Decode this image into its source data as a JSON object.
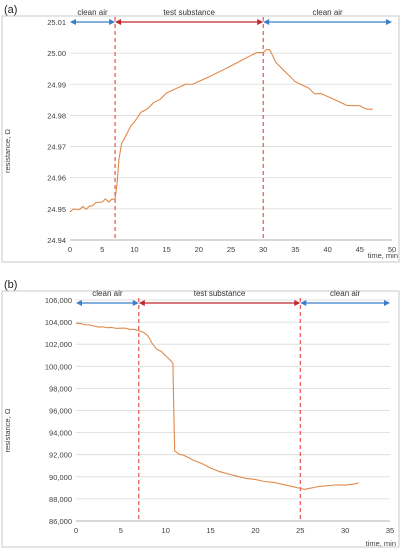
{
  "chart_data": [
    {
      "type": "line",
      "panel_label": "(a)",
      "xlabel": "time, min",
      "ylabel": "resistance, Ω",
      "xlim": [
        0,
        50
      ],
      "ylim": [
        24.94,
        25.01
      ],
      "x_ticks": [
        0,
        5,
        10,
        15,
        20,
        25,
        30,
        35,
        40,
        45,
        50
      ],
      "y_ticks": [
        24.94,
        24.95,
        24.96,
        24.97,
        24.98,
        24.99,
        25.0,
        25.01
      ],
      "y_tick_labels": [
        "24.94",
        "24.95",
        "24.96",
        "24.97",
        "24.98",
        "24.99",
        "25.00",
        "25.01"
      ],
      "grid": "horizontal",
      "phase_boundaries": [
        7,
        30
      ],
      "phases": [
        {
          "label": "clean air",
          "from": 0,
          "to": 7,
          "color": "#3A7DC9"
        },
        {
          "label": "test substance",
          "from": 7,
          "to": 30,
          "color": "#C0282D"
        },
        {
          "label": "clean air",
          "from": 30,
          "to": 50,
          "color": "#3A7DC9"
        }
      ],
      "series_color": "#E0894A",
      "boundary_color": "#E8433A",
      "series": [
        {
          "x": [
            0,
            0.5,
            1,
            1.5,
            2,
            2.5,
            3,
            3.5,
            4,
            4.5,
            5,
            5.5,
            6,
            6.5,
            7,
            7.3,
            7.6,
            8,
            8.5,
            9,
            9.5,
            10,
            11,
            12,
            13,
            14,
            15,
            16,
            17,
            18,
            19,
            20,
            21,
            22,
            23,
            24,
            25,
            26,
            27,
            28,
            29,
            30,
            30.5,
            31,
            31.5,
            32,
            33,
            34,
            35,
            36,
            37,
            38,
            39,
            40,
            41,
            42,
            43,
            44,
            45,
            46,
            47
          ],
          "y": [
            24.949,
            24.95,
            24.95,
            24.95,
            24.951,
            24.95,
            24.951,
            24.951,
            24.952,
            24.952,
            24.952,
            24.953,
            24.952,
            24.953,
            24.953,
            24.958,
            24.966,
            24.971,
            24.973,
            24.975,
            24.977,
            24.978,
            24.981,
            24.982,
            24.984,
            24.985,
            24.987,
            24.988,
            24.989,
            24.99,
            24.99,
            24.991,
            24.992,
            24.993,
            24.994,
            24.995,
            24.996,
            24.997,
            24.998,
            24.999,
            25.0,
            25.0,
            25.001,
            25.001,
            24.999,
            24.997,
            24.995,
            24.993,
            24.991,
            24.99,
            24.989,
            24.987,
            24.987,
            24.986,
            24.985,
            24.984,
            24.983,
            24.983,
            24.983,
            24.982,
            24.982
          ]
        }
      ]
    },
    {
      "type": "line",
      "panel_label": "(b)",
      "xlabel": "time, min",
      "ylabel": "resistance, Ω",
      "xlim": [
        0,
        35
      ],
      "ylim": [
        86000,
        106000
      ],
      "x_ticks": [
        0,
        5,
        10,
        15,
        20,
        25,
        30,
        35
      ],
      "y_ticks": [
        86000,
        88000,
        90000,
        92000,
        94000,
        96000,
        98000,
        100000,
        102000,
        104000,
        106000
      ],
      "y_tick_labels": [
        "86,000",
        "88,000",
        "90,000",
        "92,000",
        "94,000",
        "96,000",
        "98,000",
        "100,000",
        "102,000",
        "104,000",
        "106,000"
      ],
      "grid": "horizontal",
      "phase_boundaries": [
        7,
        25
      ],
      "phases": [
        {
          "label": "clean air",
          "from": 0,
          "to": 7,
          "color": "#3A7DC9"
        },
        {
          "label": "test substance",
          "from": 7,
          "to": 25,
          "color": "#C0282D"
        },
        {
          "label": "clean air",
          "from": 25,
          "to": 35,
          "color": "#3A7DC9"
        }
      ],
      "series_color": "#E0894A",
      "boundary_color": "#E8433A",
      "series": [
        {
          "x": [
            0,
            0.5,
            1,
            1.5,
            2,
            2.5,
            3,
            3.5,
            4,
            4.5,
            5,
            5.5,
            6,
            6.5,
            7,
            7.5,
            8,
            8.5,
            9,
            9.5,
            10,
            10.5,
            10.8,
            10.9,
            11,
            11.5,
            12,
            12.5,
            13,
            14,
            15,
            16,
            17,
            18,
            19,
            20,
            21,
            22,
            23,
            24,
            25,
            25.5,
            26,
            26.5,
            27,
            28,
            29,
            30,
            31,
            31.5
          ],
          "y": [
            103900,
            103900,
            103800,
            103800,
            103700,
            103600,
            103600,
            103500,
            103500,
            103400,
            103400,
            103400,
            103300,
            103300,
            103200,
            103100,
            102800,
            102100,
            101600,
            101400,
            101000,
            100600,
            100300,
            96000,
            92300,
            92000,
            91900,
            91700,
            91500,
            91200,
            90800,
            90500,
            90300,
            90100,
            89900,
            89800,
            89600,
            89500,
            89300,
            89100,
            88900,
            88800,
            88900,
            89000,
            89100,
            89200,
            89300,
            89300,
            89400,
            89500
          ]
        }
      ]
    }
  ]
}
